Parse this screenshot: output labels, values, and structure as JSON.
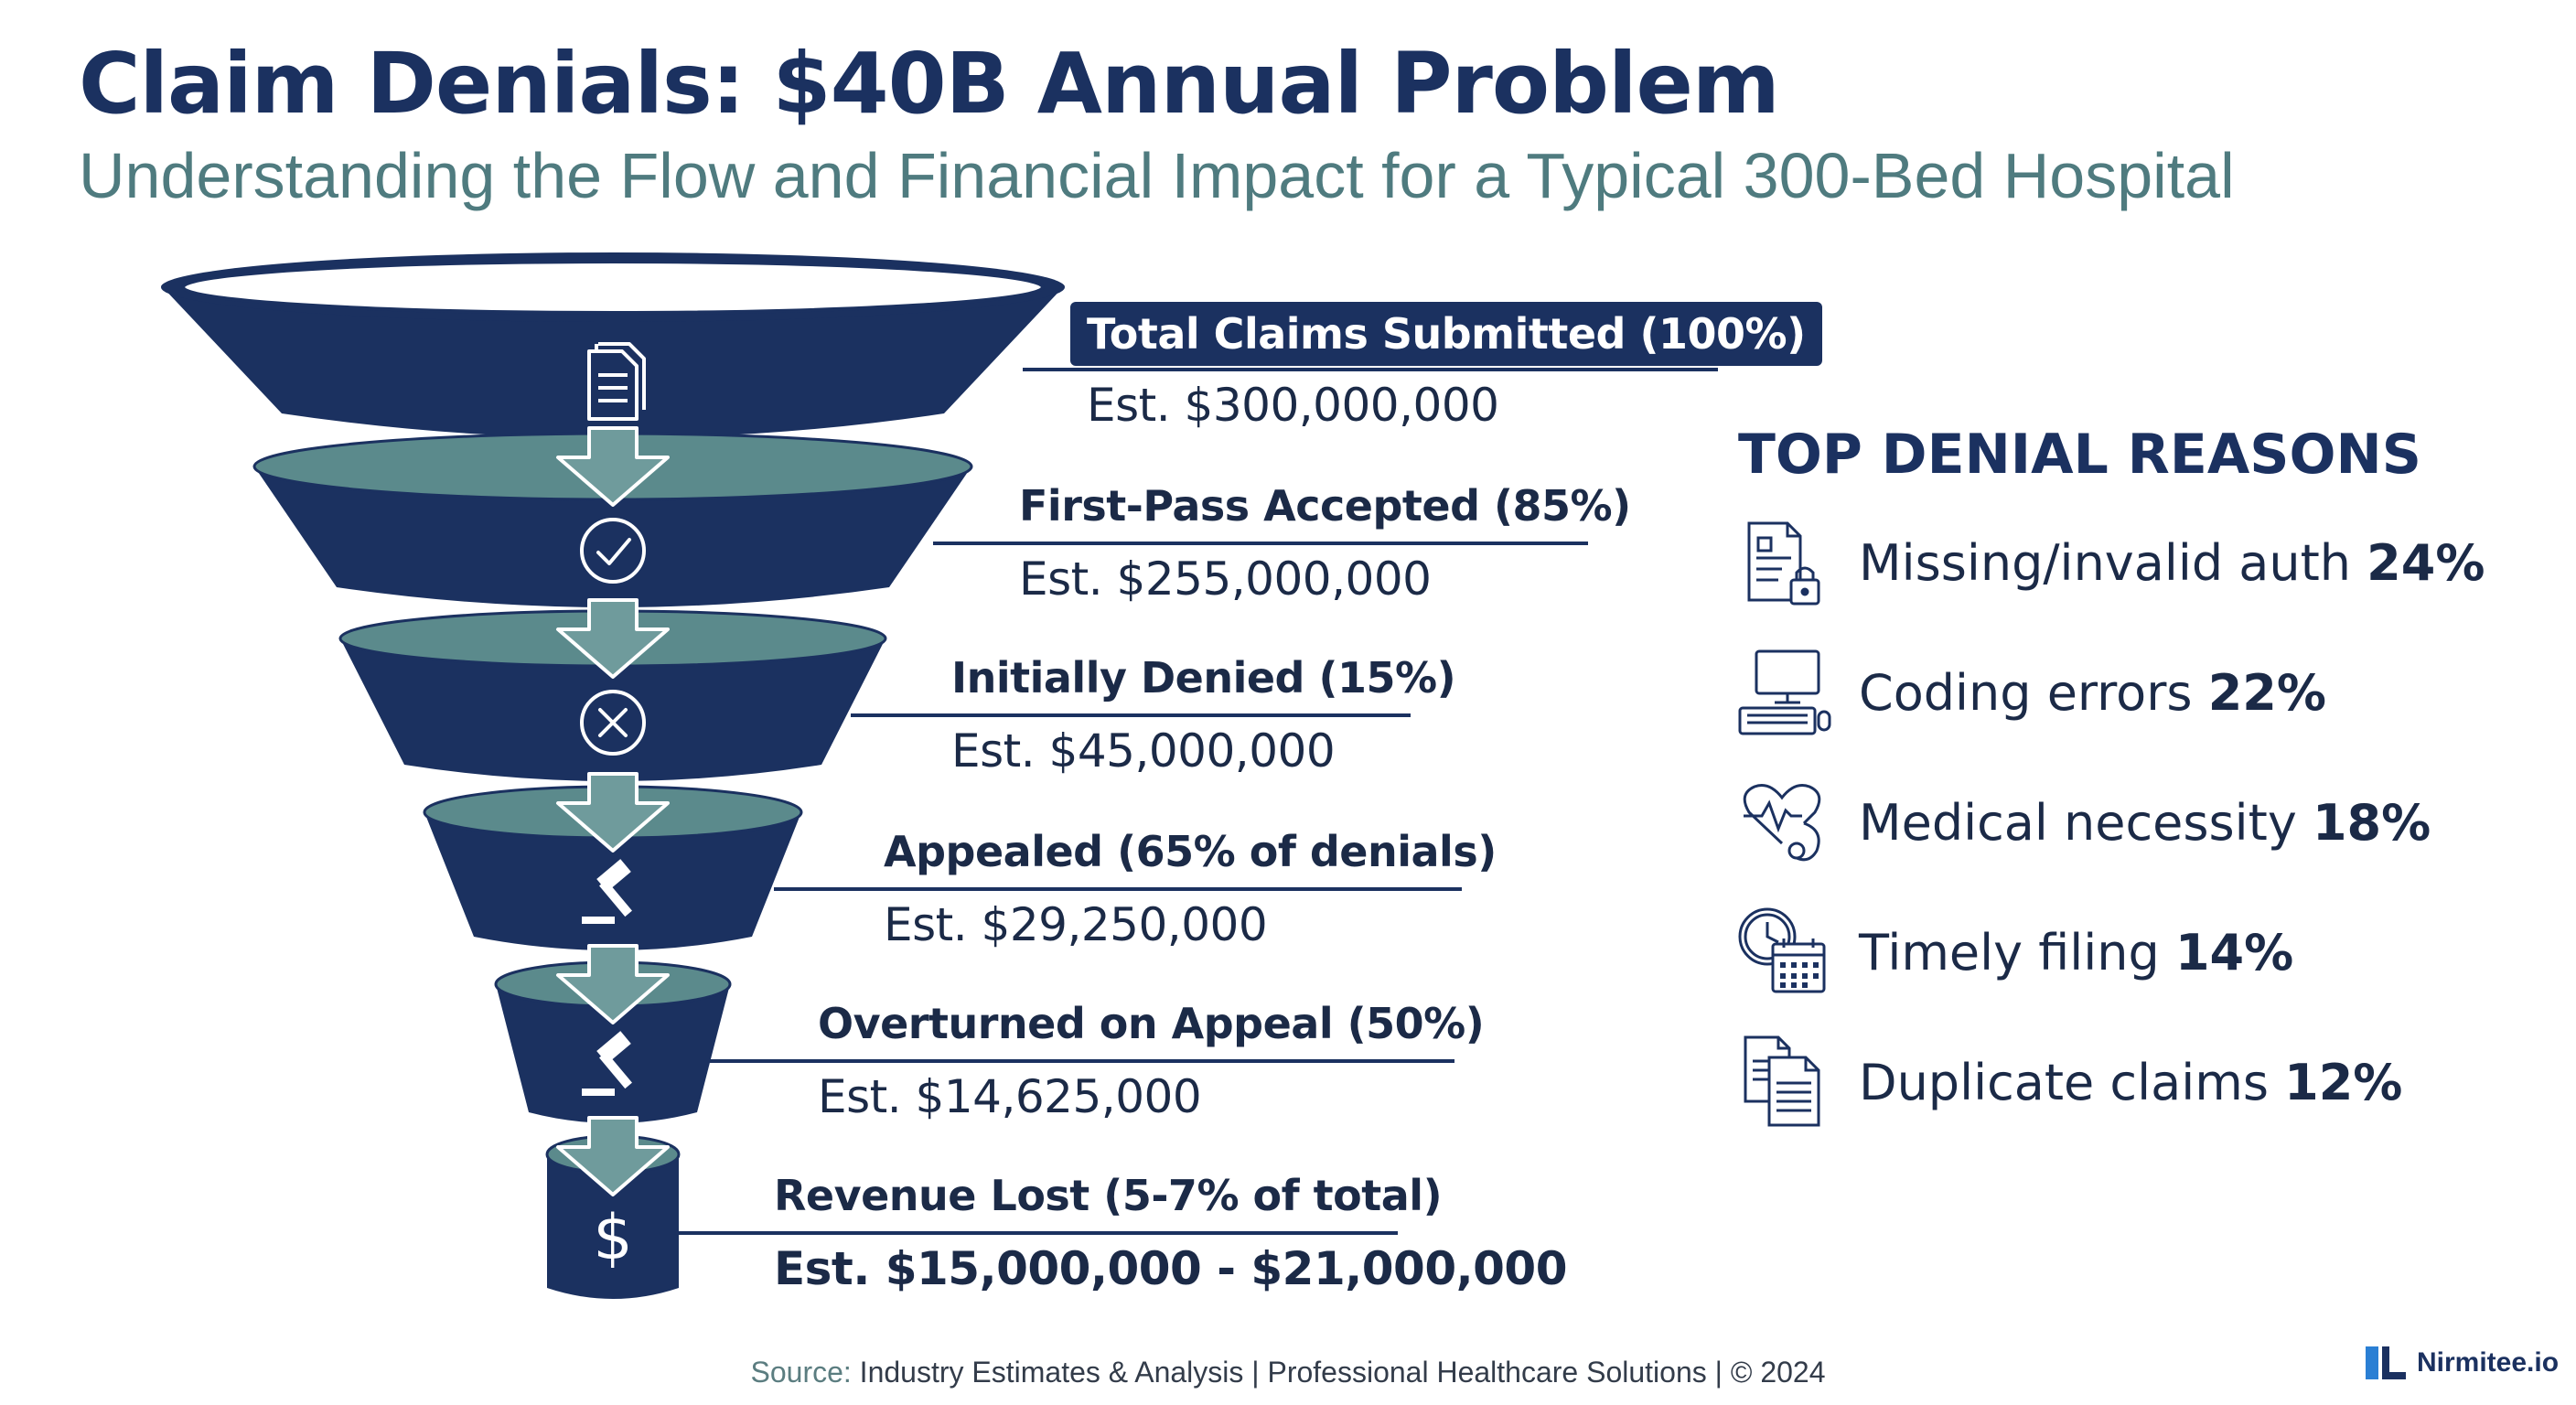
{
  "header": {
    "title": "Claim Denials: $40B Annual Problem",
    "subtitle": "Understanding the Flow and Financial Impact for a Typical 300-Bed Hospital"
  },
  "funnel": {
    "colors": {
      "dark": "#1b3160",
      "teal": "#5b8a8c",
      "arrow": "#6f9b9c"
    },
    "stages": [
      {
        "label": "Total Claims Submitted (100%)",
        "value": "Est. $300,000,000",
        "icon": "document-icon"
      },
      {
        "label": "First-Pass Accepted (85%)",
        "value": "Est. $255,000,000",
        "icon": "check-circle-icon"
      },
      {
        "label": "Initially Denied (15%)",
        "value": "Est. $45,000,000",
        "icon": "x-circle-icon"
      },
      {
        "label": "Appealed (65% of denials)",
        "value": "Est. $29,250,000",
        "icon": "gavel-icon"
      },
      {
        "label": "Overturned on Appeal (50%)",
        "value": "Est. $14,625,000",
        "icon": "gavel-icon"
      },
      {
        "label": "Revenue Lost (5-7% of total)",
        "value": "Est. $15,000,000 - $21,000,000",
        "icon": "dollar-icon"
      }
    ]
  },
  "reasons": {
    "heading": "TOP DENIAL REASONS",
    "items": [
      {
        "text": "Missing/invalid auth",
        "pct": "24%",
        "icon": "document-lock-icon"
      },
      {
        "text": "Coding errors",
        "pct": "22%",
        "icon": "computer-icon"
      },
      {
        "text": "Medical necessity",
        "pct": "18%",
        "icon": "stethoscope-heart-icon"
      },
      {
        "text": "Timely filing",
        "pct": "14%",
        "icon": "clock-calendar-icon"
      },
      {
        "text": "Duplicate claims",
        "pct": "12%",
        "icon": "duplicate-documents-icon"
      }
    ]
  },
  "footer": {
    "source_label": "Source:",
    "source_text": "Industry Estimates & Analysis | Professional Healthcare Solutions |  © 2024"
  },
  "brand": {
    "name": "Nirmitee.io"
  }
}
